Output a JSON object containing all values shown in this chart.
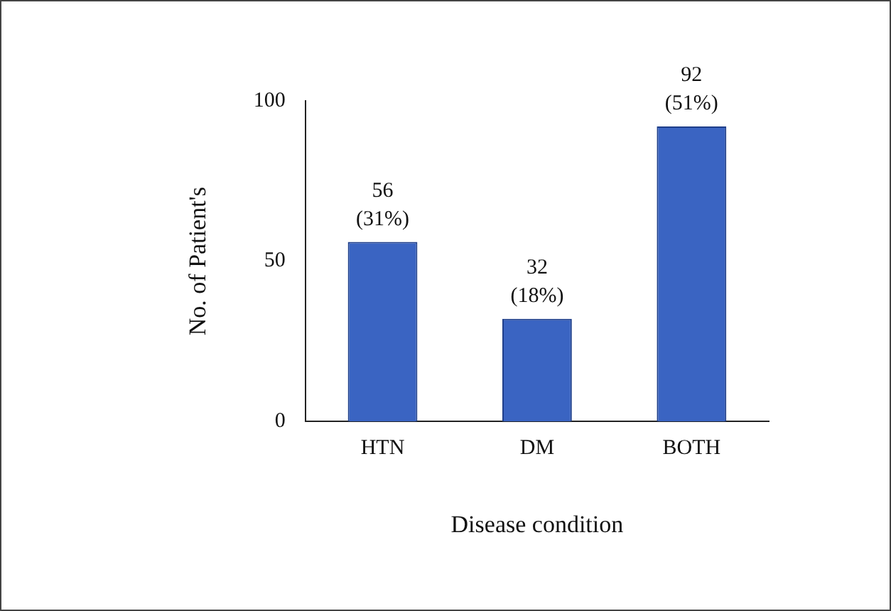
{
  "chart_data": {
    "type": "bar",
    "categories": [
      "HTN",
      "DM",
      "BOTH"
    ],
    "values": [
      56,
      32,
      92
    ],
    "color": "#3a64c2",
    "value_labels": [
      "56 (31%)",
      "32 (18%)",
      "92 (51%)"
    ],
    "xlabel": "Disease condition",
    "ylabel": "No. of Patient's",
    "ylim": [
      0,
      100
    ],
    "yticks": [
      0,
      50,
      100
    ],
    "grid": false,
    "legend": false
  }
}
